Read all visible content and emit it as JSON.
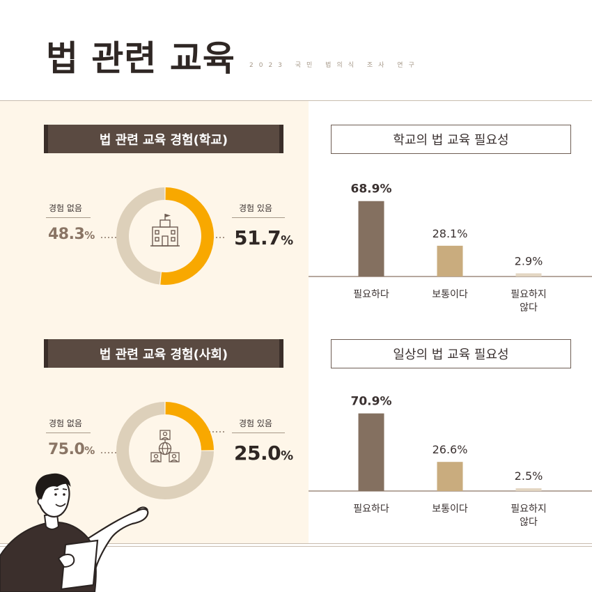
{
  "header": {
    "title": "법 관련 교육",
    "subtitle": "2023 국민 법의식 조사 연구"
  },
  "colors": {
    "yes": "#f8a800",
    "no": "#ddd0ba",
    "bar_high": "#847060",
    "bar_mid": "#c9ac7e",
    "bar_low": "#e3d6c2"
  },
  "school": {
    "banner": "법 관련 교육 경험(학교)",
    "no_label": "경험 없음",
    "no_value": "48.3",
    "yes_label": "경험 있음",
    "yes_value": "51.7",
    "unit": "%",
    "icon": "school-building-icon"
  },
  "society": {
    "banner": "법 관련 교육 경험(사회)",
    "no_label": "경험 없음",
    "no_value": "75.0",
    "yes_label": "경험 있음",
    "yes_value": "25.0",
    "unit": "%",
    "icon": "globe-people-network-icon"
  },
  "chart_data": [
    {
      "type": "pie",
      "title": "법 관련 교육 경험(학교)",
      "labels": [
        "경험 있음",
        "경험 없음"
      ],
      "values": [
        51.7,
        48.3
      ],
      "donut": true
    },
    {
      "type": "pie",
      "title": "법 관련 교육 경험(사회)",
      "labels": [
        "경험 있음",
        "경험 없음"
      ],
      "values": [
        25.0,
        75.0
      ],
      "donut": true
    },
    {
      "type": "bar",
      "title": "학교의 법 교육 필요성",
      "categories": [
        "필요하다",
        "보통이다",
        "필요하지\n않다"
      ],
      "values": [
        68.9,
        28.1,
        2.9
      ],
      "value_labels": [
        "68.9%",
        "28.1%",
        "2.9%"
      ],
      "ylim": [
        0,
        100
      ]
    },
    {
      "type": "bar",
      "title": "일상의 법 교육 필요성",
      "categories": [
        "필요하다",
        "보통이다",
        "필요하지\n않다"
      ],
      "values": [
        70.9,
        26.6,
        2.5
      ],
      "value_labels": [
        "70.9%",
        "26.6%",
        "2.5%"
      ],
      "ylim": [
        0,
        100
      ]
    }
  ]
}
